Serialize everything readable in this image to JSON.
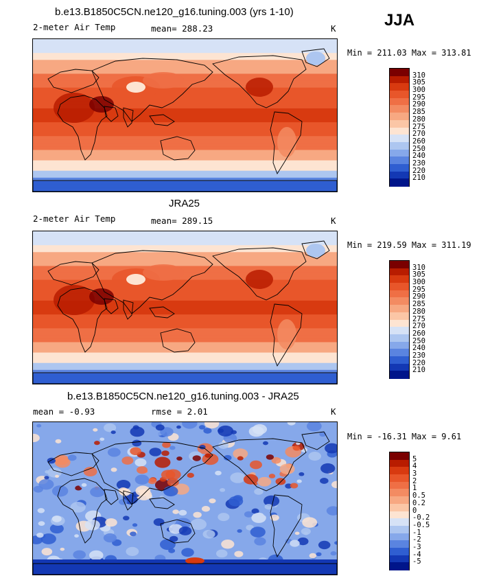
{
  "season": "JJA",
  "panels": [
    {
      "id": "model",
      "title": "b.e13.B1850C5CN.ne120_g16.tuning.003 (yrs 1-10)",
      "left_label": "2-meter Air Temp",
      "center_label": "mean= 288.23",
      "units": "K",
      "minmax": "Min = 211.03 Max = 313.81",
      "scheme": "abs",
      "colorbar": {
        "labels": [
          "310",
          "305",
          "300",
          "295",
          "290",
          "285",
          "280",
          "275",
          "270",
          "260",
          "250",
          "240",
          "230",
          "220",
          "210"
        ],
        "colors": [
          "#7a0000",
          "#b81c00",
          "#d83a10",
          "#e8562a",
          "#ef6f45",
          "#f38b62",
          "#f7a882",
          "#fbc6a6",
          "#fde4d2",
          "#d6e2f6",
          "#adc6f0",
          "#86a8ea",
          "#5a84e0",
          "#2f5ed1",
          "#1338b4",
          "#00158a"
        ]
      }
    },
    {
      "id": "obs",
      "title": "JRA25",
      "left_label": "2-meter Air Temp",
      "center_label": "mean= 289.15",
      "units": "K",
      "minmax": "Min = 219.59 Max = 311.19",
      "scheme": "abs",
      "colorbar": {
        "labels": [
          "310",
          "305",
          "300",
          "295",
          "290",
          "285",
          "280",
          "275",
          "270",
          "260",
          "250",
          "240",
          "230",
          "220",
          "210"
        ],
        "colors": [
          "#7a0000",
          "#b81c00",
          "#d83a10",
          "#e8562a",
          "#ef6f45",
          "#f38b62",
          "#f7a882",
          "#fbc6a6",
          "#fde4d2",
          "#d6e2f6",
          "#adc6f0",
          "#86a8ea",
          "#5a84e0",
          "#2f5ed1",
          "#1338b4",
          "#00158a"
        ]
      }
    },
    {
      "id": "diff",
      "title": "b.e13.B1850C5CN.ne120_g16.tuning.003 - JRA25",
      "left_label": "mean =   -0.93",
      "center_label": "rmse =    2.01",
      "units": "K",
      "minmax": "Min = -16.31 Max =   9.61",
      "scheme": "diff",
      "colorbar": {
        "labels": [
          "5",
          "4",
          "3",
          "2",
          "1",
          "0.5",
          "0.2",
          "0",
          "-0.2",
          "-0.5",
          "-1",
          "-2",
          "-3",
          "-4",
          "-5"
        ],
        "colors": [
          "#7a0000",
          "#b81c00",
          "#d83a10",
          "#e8562a",
          "#ef6f45",
          "#f38b62",
          "#f7a882",
          "#fbc6a6",
          "#fde4d2",
          "#d6e2f6",
          "#adc6f0",
          "#86a8ea",
          "#5a84e0",
          "#2f5ed1",
          "#1338b4",
          "#00158a"
        ]
      }
    }
  ]
}
